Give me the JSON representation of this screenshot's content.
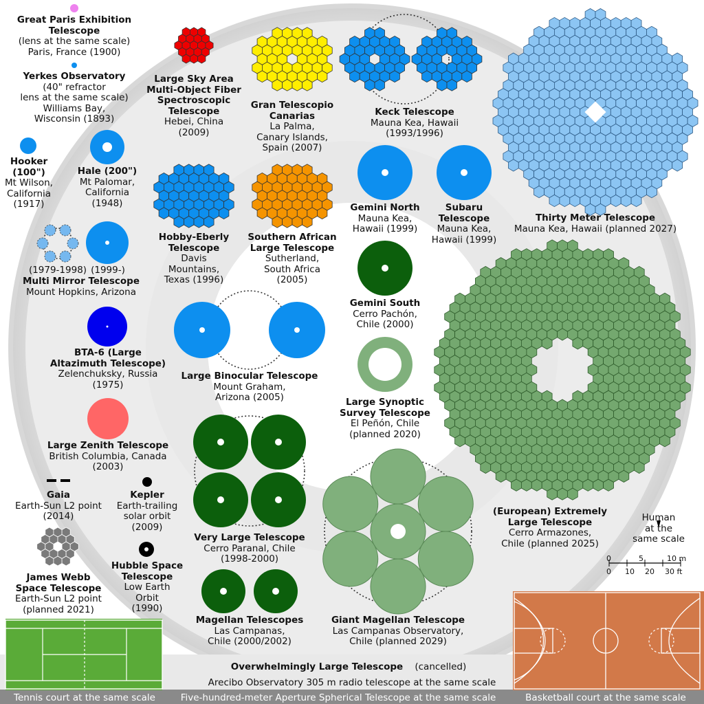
{
  "colors": {
    "blue": "#0d8fef",
    "lightblue": "#76b8ef",
    "darkblue": "#0000ee",
    "yellow": "#ffee00",
    "red": "#ee0000",
    "orange": "#f59400",
    "darkgreen": "#0c5f0c",
    "midgreen": "#76a973",
    "lightgreen": "#80b07c",
    "pink": "#ff6666",
    "violet": "#ee82ee",
    "gray": "#7a7a7a",
    "tennis": "#5aab38",
    "court": "#d27949"
  },
  "labels": {
    "paris": {
      "name": "Great Paris Exhibition\nTelescope",
      "info": "(lens at the same scale)\nParis, France (1900)"
    },
    "yerkes": {
      "name": "Yerkes Observatory",
      "info": "(40\" refractor\nlens at the same scale)\nWilliams Bay,\nWisconsin (1893)"
    },
    "hooker": {
      "name": "Hooker\n(100\")",
      "info": "Mt Wilson,\nCalifornia\n(1917)"
    },
    "hale": {
      "name": "Hale (200\")",
      "info": "Mt Palomar,\nCalifornia\n(1948)"
    },
    "mmt_old": {
      "name": "",
      "info": "(1979-1998)"
    },
    "mmt_new": {
      "name": "",
      "info": "(1999-)"
    },
    "mmt": {
      "name": "Multi Mirror Telescope",
      "info": "Mount Hopkins, Arizona"
    },
    "bta": {
      "name": "BTA-6 (Large\nAltazimuth Telescope)",
      "info": "Zelenchuksky, Russia\n(1975)"
    },
    "lzt": {
      "name": "Large Zenith Telescope",
      "info": "British Columbia, Canada\n(2003)"
    },
    "gaia": {
      "name": "Gaia",
      "info": "Earth-Sun L2 point\n(2014)"
    },
    "kepler": {
      "name": "Kepler",
      "info": "Earth-trailing\nsolar orbit\n(2009)"
    },
    "jwst": {
      "name": "James Webb\nSpace Telescope",
      "info": "Earth-Sun L2 point\n(planned 2021)"
    },
    "hubble": {
      "name": "Hubble Space\nTelescope",
      "info": "Low Earth\nOrbit\n(1990)"
    },
    "lamost": {
      "name": "Large Sky Area\nMulti-Object Fiber\nSpectroscopic\nTelescope",
      "info": "Hebei, China\n(2009)"
    },
    "gtc": {
      "name": "Gran Telescopio\nCanarias",
      "info": "La Palma,\nCanary Islands,\nSpain (2007)"
    },
    "keck": {
      "name": "Keck Telescope",
      "info": "Mauna Kea, Hawaii\n(1993/1996)"
    },
    "het": {
      "name": "Hobby-Eberly\nTelescope",
      "info": "Davis\nMountains,\nTexas (1996)"
    },
    "salt": {
      "name": "Southern African\nLarge Telescope",
      "info": "Sutherland,\nSouth Africa\n(2005)"
    },
    "gemn": {
      "name": "Gemini North",
      "info": "Mauna Kea,\nHawaii (1999)"
    },
    "subaru": {
      "name": "Subaru\nTelescope",
      "info": "Mauna Kea,\nHawaii (1999)"
    },
    "tmt": {
      "name": "Thirty Meter Telescope",
      "info": "Mauna Kea, Hawaii (planned 2027)"
    },
    "gems": {
      "name": "Gemini South",
      "info": "Cerro Pachón,\nChile (2000)"
    },
    "lbt": {
      "name": "Large Binocular Telescope",
      "info": "Mount Graham,\nArizona (2005)"
    },
    "lsst": {
      "name": "Large Synoptic\nSurvey Telescope",
      "info": "El Peñón, Chile\n(planned 2020)"
    },
    "vlt": {
      "name": "Very Large Telescope",
      "info": "Cerro Paranal, Chile\n(1998-2000)"
    },
    "elt": {
      "name": "(European) Extremely\nLarge Telescope",
      "info": "Cerro Armazones,\nChile (planned 2025)"
    },
    "human": {
      "name": "",
      "info": "Human\nat the\nsame scale"
    },
    "magellan": {
      "name": "Magellan Telescopes",
      "info": "Las Campanas,\nChile (2000/2002)"
    },
    "gmt": {
      "name": "Giant Magellan Telescope",
      "info": "Las Campanas Observatory,\nChile (planned 2029)"
    }
  },
  "owl": {
    "name": "Overwhelmingly Large Telescope",
    "status": "(cancelled)"
  },
  "arecibo": "Arecibo Observatory 305 m radio telescope at the same scale",
  "fast": "Five-hundred-meter Aperture Spherical Telescope at the same scale",
  "tennis": "Tennis court at the same scale",
  "basketball": "Basketball court at the same scale",
  "scalebar": {
    "m": [
      "0",
      "5",
      "10 m"
    ],
    "ft": [
      "0",
      "10",
      "20",
      "30 ft"
    ]
  }
}
